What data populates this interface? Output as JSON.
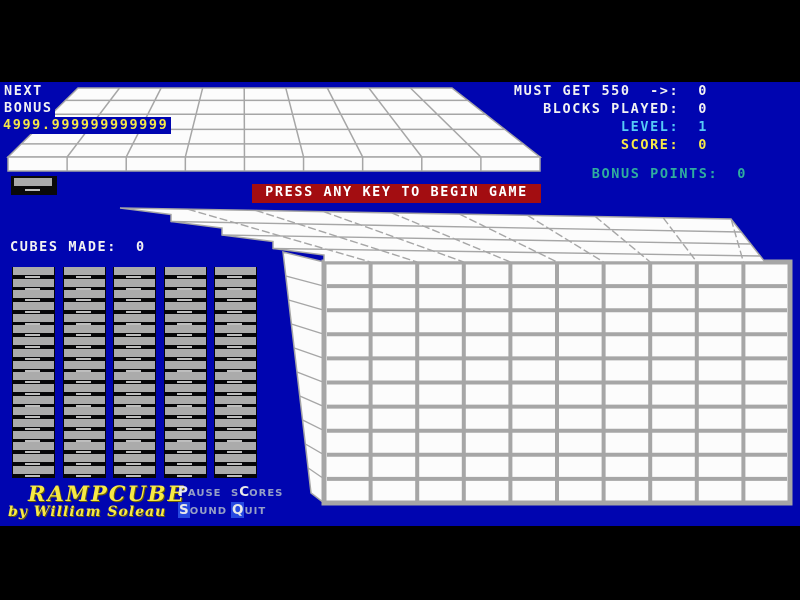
{
  "hud": {
    "next_label": "NEXT",
    "bonus_label": "BONUS",
    "bonus_value": "4999.999999999999",
    "stats": [
      {
        "label": "MUST GET 550  ->:",
        "value": "0",
        "color": "#F2F2F2"
      },
      {
        "label": "BLOCKS PLAYED:",
        "value": "0",
        "color": "#F2F2F2"
      },
      {
        "label": "LEVEL:",
        "value": "1",
        "color": "#57CBF5"
      },
      {
        "label": "SCORE:",
        "value": "0",
        "color": "#F6E946"
      }
    ],
    "bonus_points": {
      "label": "BONUS POINTS:",
      "value": "0",
      "color": "#2FAE9E"
    },
    "cubes_made": {
      "label": "CUBES MADE:",
      "value": "0"
    },
    "banner": "PRESS ANY KEY TO BEGIN GAME"
  },
  "logo": {
    "title": "RAMPCUBE",
    "byline": "by William Soleau"
  },
  "menu": {
    "items": [
      {
        "name": "pause",
        "pre": "",
        "key": "P",
        "rest": "ause",
        "key_boxed": false
      },
      {
        "name": "scores",
        "pre": "s",
        "key": "C",
        "rest": "ores",
        "key_boxed": false
      },
      {
        "name": "sound",
        "pre": "",
        "key": "S",
        "rest": "ound",
        "key_boxed": true
      },
      {
        "name": "quit",
        "pre": "",
        "key": "Q",
        "rest": "uit",
        "key_boxed": true
      }
    ]
  },
  "scene": {
    "stacks": {
      "columns": 5,
      "blocks_per_column": 18
    },
    "main_ramp": {
      "grid_cols": 10,
      "grid_rows": 10,
      "top_steps": 4
    },
    "top_ramp": {
      "grid_cols": 9,
      "grid_rows": 5
    },
    "colors": {
      "field_blue": "#0005B0",
      "surface_white": "#FCFCFC",
      "grid_line": "#A6A6A6",
      "block_gray": "#ABABAB",
      "banner_red": "#A30D11"
    }
  }
}
